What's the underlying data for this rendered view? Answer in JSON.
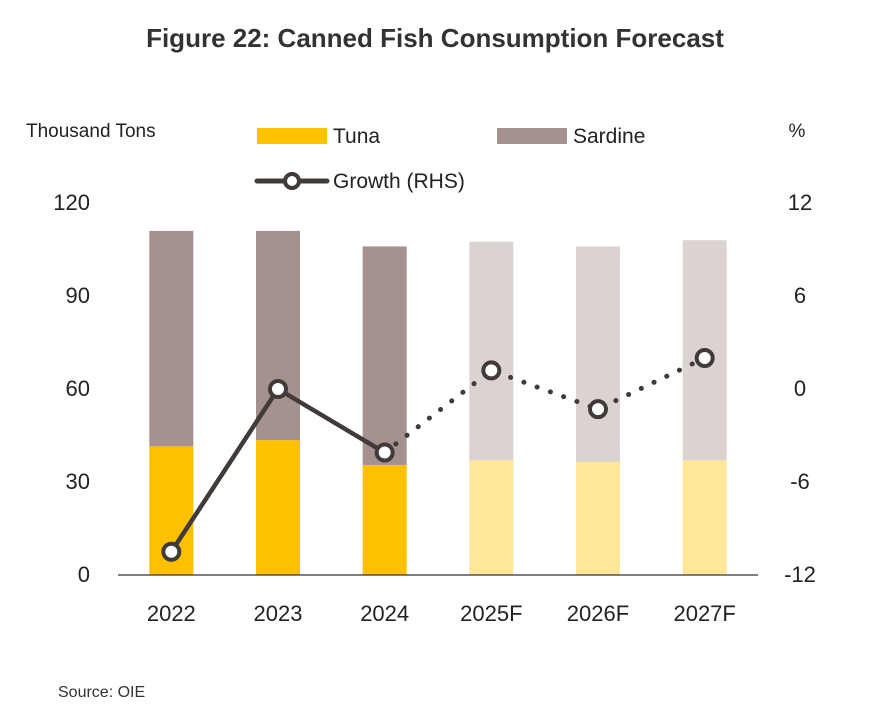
{
  "chart_data": {
    "type": "bar",
    "title": "Figure 22: Canned Fish Consumption Forecast",
    "ylabel_left": "Thousand Tons",
    "ylabel_right": "%",
    "categories": [
      "2022",
      "2023",
      "2024",
      "2025F",
      "2026F",
      "2027F"
    ],
    "forecast_from_index": 3,
    "ylim_left": [
      0,
      120
    ],
    "yticks_left": [
      0,
      30,
      60,
      90,
      120
    ],
    "ylim_right": [
      -12,
      12
    ],
    "yticks_right": [
      -12,
      -6,
      0,
      6,
      12
    ],
    "grid": false,
    "legend_position": "top",
    "series": [
      {
        "name": "Tuna",
        "type": "stacked-bar",
        "axis": "left",
        "color": "#FFC000",
        "forecast_color": "#FFE699",
        "values": [
          41.5,
          43.5,
          35.5,
          37.0,
          36.5,
          37.0
        ]
      },
      {
        "name": "Sardine",
        "type": "stacked-bar",
        "axis": "left",
        "color": "#A5918D",
        "forecast_color": "#DBD3D1",
        "values": [
          69.5,
          67.5,
          70.5,
          70.5,
          69.5,
          71.0
        ]
      },
      {
        "name": "Growth (RHS)",
        "type": "line",
        "axis": "right",
        "color": "#403A38",
        "values": [
          -10.5,
          0.0,
          -4.1,
          1.2,
          -1.3,
          2.0
        ]
      }
    ],
    "source": "Source: OIE"
  }
}
